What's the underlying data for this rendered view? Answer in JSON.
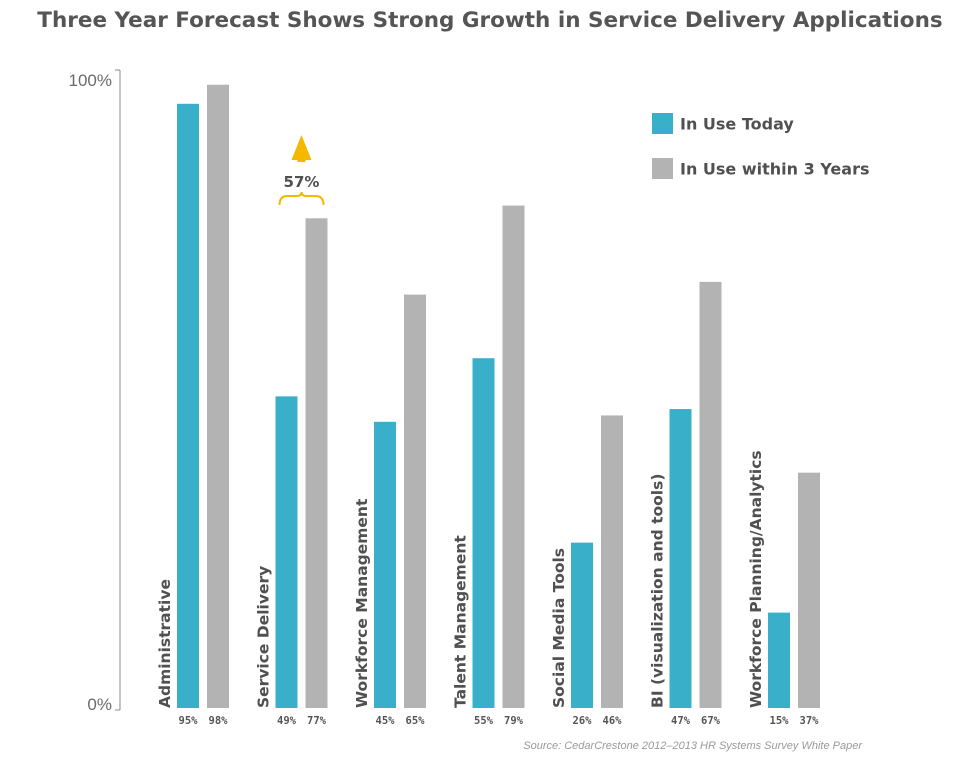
{
  "chart_data": {
    "type": "bar",
    "title": "Three Year Forecast Shows Strong Growth in Service Delivery Applications",
    "xlabel": "",
    "ylabel": "",
    "ylim": [
      0,
      100
    ],
    "y_ticks": [
      "100%",
      "0%"
    ],
    "grid": false,
    "legend_position": "top-right",
    "categories": [
      "Administrative",
      "Service Delivery",
      "Workforce Management",
      "Talent Management",
      "Social Media Tools",
      "BI (visualization and tools)",
      "Workforce Planning/Analytics"
    ],
    "series": [
      {
        "name": "In Use Today",
        "color": "#3AAFC9",
        "values": [
          95,
          49,
          45,
          55,
          26,
          47,
          15
        ],
        "labels": [
          "95%",
          "49%",
          "45%",
          "55%",
          "26%",
          "47%",
          "15%"
        ]
      },
      {
        "name": "In Use within 3 Years",
        "color": "#B3B3B3",
        "values": [
          98,
          77,
          65,
          79,
          46,
          67,
          37
        ],
        "labels": [
          "98%",
          "77%",
          "65%",
          "79%",
          "46%",
          "67%",
          "37%"
        ]
      }
    ],
    "annotation": {
      "text": "57%",
      "category": "Service Delivery",
      "color": "#F5B800",
      "icon": "up-arrow-icon"
    },
    "source": "Source: CedarCrestone 2012–2013 HR Systems Survey White Paper"
  }
}
